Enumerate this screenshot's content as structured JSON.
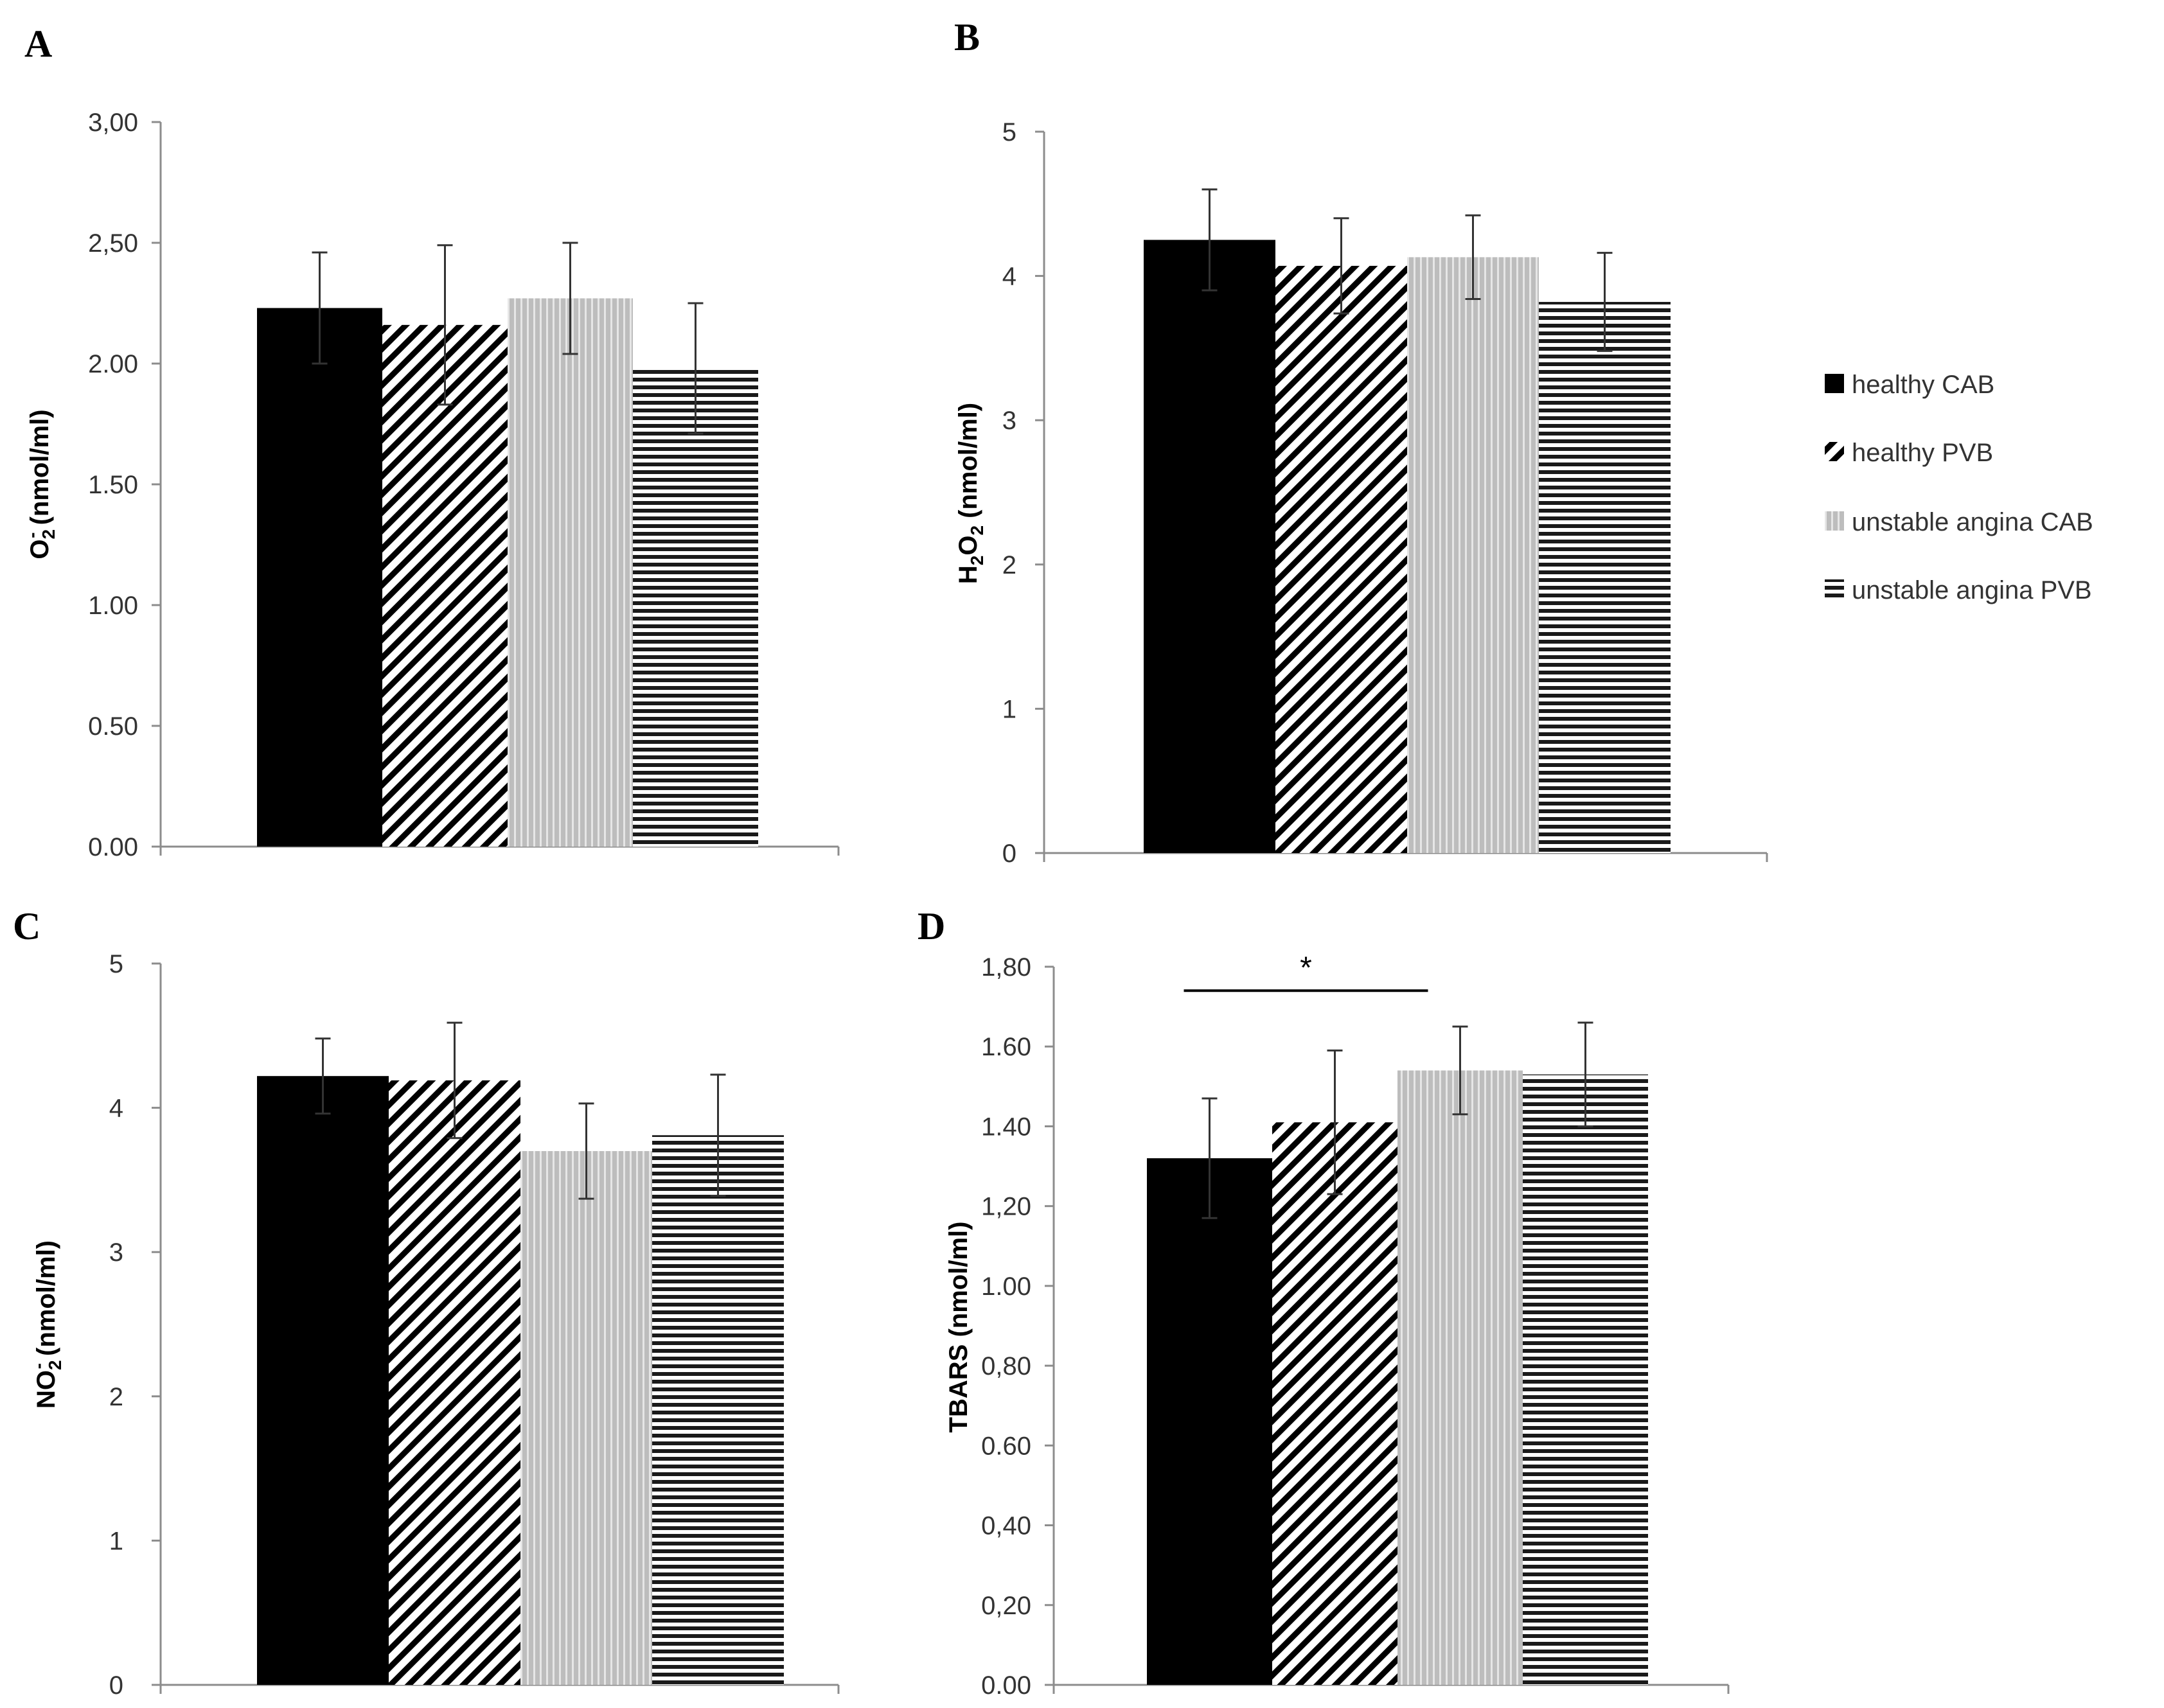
{
  "legend": [
    "healthy CAB",
    "healthy PVB",
    "unstable angina CAB",
    "unstable angina PVB"
  ],
  "chart_data": [
    {
      "panel": "A",
      "type": "bar",
      "ylabel": "O2- (nmol/ml)",
      "ylabel_parts": [
        "O",
        "2",
        "-",
        " (nmol/ml)"
      ],
      "ylim": [
        0,
        3
      ],
      "yticks": [
        0,
        0.5,
        1,
        1.5,
        2,
        2.5,
        3
      ],
      "ytick_labels": [
        "0.00",
        "0.50",
        "1.00",
        "1.50",
        "2.00",
        "2,50",
        "3,00"
      ],
      "categories": [
        "healthy CAB",
        "healthy PVB",
        "unstable angina CAB",
        "unstable angina PVB"
      ],
      "values": [
        2.23,
        2.16,
        2.27,
        1.98
      ],
      "errors": [
        0.23,
        0.33,
        0.23,
        0.27
      ],
      "annotations": []
    },
    {
      "panel": "B",
      "type": "bar",
      "ylabel": "H2O2 (nmol/ml)",
      "ylabel_parts": [
        "H",
        "2",
        "",
        "O",
        "2",
        "",
        " (nmol/ml)"
      ],
      "ylim": [
        0,
        5
      ],
      "yticks": [
        0,
        1,
        2,
        3,
        4,
        5
      ],
      "ytick_labels": [
        "0",
        "1",
        "2",
        "3",
        "4",
        "5"
      ],
      "categories": [
        "healthy CAB",
        "healthy PVB",
        "unstable angina CAB",
        "unstable angina PVB"
      ],
      "values": [
        4.25,
        4.07,
        4.13,
        3.82
      ],
      "errors": [
        0.35,
        0.33,
        0.29,
        0.34
      ],
      "annotations": []
    },
    {
      "panel": "C",
      "type": "bar",
      "ylabel": "NO2- (nmol/ml)",
      "ylabel_parts": [
        "NO",
        "2",
        "-",
        " (nmol/ml)"
      ],
      "ylim": [
        0,
        5
      ],
      "yticks": [
        0,
        1,
        2,
        3,
        4,
        5
      ],
      "ytick_labels": [
        "0",
        "1",
        "2",
        "3",
        "4",
        "5"
      ],
      "categories": [
        "healthy CAB",
        "healthy PVB",
        "unstable angina CAB",
        "unstable angina PVB"
      ],
      "values": [
        4.22,
        4.19,
        3.7,
        3.81
      ],
      "errors": [
        0.26,
        0.4,
        0.33,
        0.42
      ],
      "annotations": []
    },
    {
      "panel": "D",
      "type": "bar",
      "ylabel": "TBARS (nmol/ml)",
      "ylabel_parts": [
        "TBARS (nmol/ml)"
      ],
      "ylim": [
        0,
        1.8
      ],
      "yticks": [
        0,
        0.2,
        0.4,
        0.6,
        0.8,
        1.0,
        1.2,
        1.4,
        1.6,
        1.8
      ],
      "ytick_labels": [
        "0.00",
        "0,20",
        "0,40",
        "0.60",
        "0,80",
        "1.00",
        "1,20",
        "1.40",
        "1.60",
        "1,80"
      ],
      "categories": [
        "healthy CAB",
        "healthy PVB",
        "unstable angina CAB",
        "unstable angina PVB"
      ],
      "values": [
        1.32,
        1.41,
        1.54,
        1.53
      ],
      "errors": [
        0.15,
        0.18,
        0.11,
        0.13
      ],
      "annotations": [
        {
          "text": "*",
          "from": 0,
          "to": 2,
          "y": 1.74
        }
      ]
    }
  ]
}
